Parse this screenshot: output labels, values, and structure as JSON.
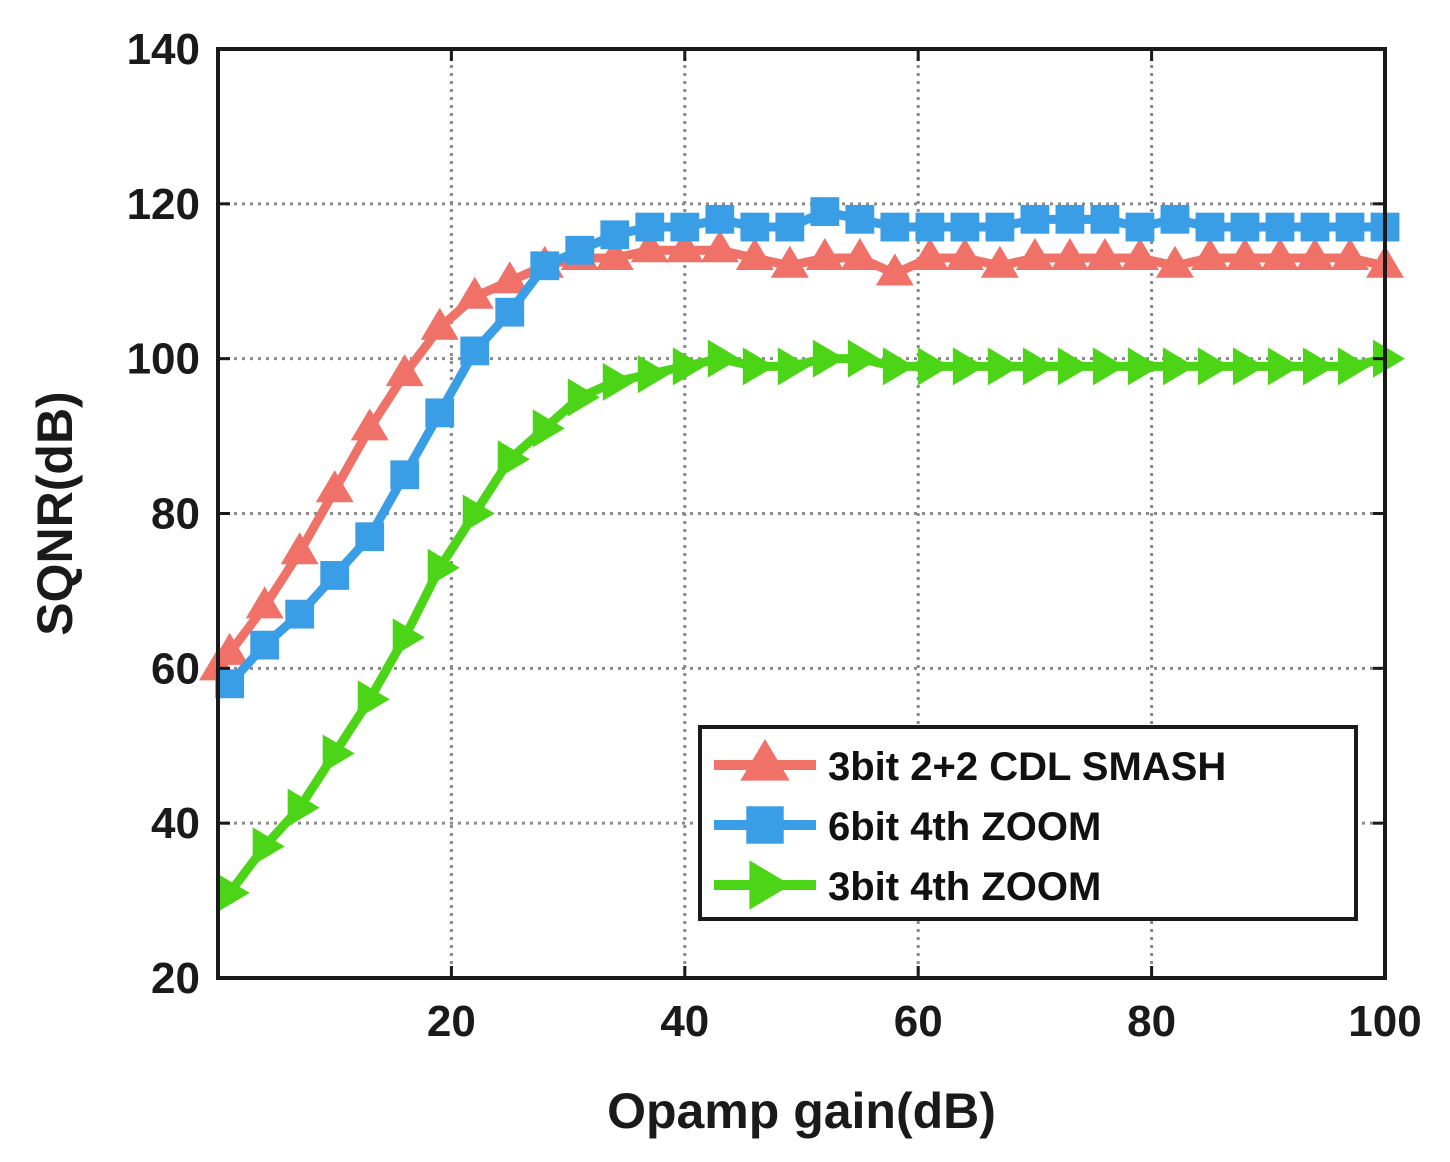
{
  "chart_data": {
    "type": "line",
    "title": "",
    "xlabel": "Opamp gain(dB)",
    "ylabel": "SQNR(dB)",
    "xlim": [
      0,
      100
    ],
    "ylim": [
      20,
      140
    ],
    "xticks": [
      20,
      40,
      60,
      80,
      100
    ],
    "yticks": [
      20,
      40,
      60,
      80,
      100,
      120,
      140
    ],
    "grid": true,
    "legend_position": "bottom-right",
    "x": [
      0,
      1,
      4,
      7,
      10,
      13,
      16,
      19,
      22,
      25,
      28,
      31,
      34,
      37,
      40,
      43,
      46,
      49,
      52,
      55,
      58,
      61,
      64,
      67,
      70,
      73,
      76,
      79,
      82,
      85,
      88,
      91,
      94,
      97,
      100
    ],
    "series": [
      {
        "name": "3bit 2+2 CDL SMASH",
        "color": "#f07167",
        "marker": "triangle-up",
        "values": [
          60,
          62,
          68,
          75,
          83,
          91,
          98,
          104,
          108,
          110,
          112,
          113,
          113,
          114,
          114,
          114,
          113,
          112,
          113,
          113,
          111,
          113,
          113,
          112,
          113,
          113,
          113,
          113,
          112,
          113,
          113,
          113,
          113,
          113,
          112
        ]
      },
      {
        "name": "6bit 4th ZOOM",
        "color": "#3a9ee6",
        "marker": "square",
        "values": [
          null,
          58,
          63,
          67,
          72,
          77,
          85,
          93,
          101,
          106,
          112,
          114,
          116,
          117,
          117,
          118,
          117,
          117,
          119,
          118,
          117,
          117,
          117,
          117,
          118,
          118,
          118,
          117,
          118,
          117,
          117,
          117,
          117,
          117,
          117
        ]
      },
      {
        "name": "3bit 4th ZOOM",
        "color": "#4cd417",
        "marker": "triangle-right",
        "values": [
          null,
          31,
          37,
          42,
          49,
          56,
          64,
          73,
          80,
          87,
          91,
          95,
          97,
          98,
          99,
          100,
          99,
          99,
          100,
          100,
          99,
          99,
          99,
          99,
          99,
          99,
          99,
          99,
          99,
          99,
          99,
          99,
          99,
          99,
          100
        ]
      }
    ]
  }
}
